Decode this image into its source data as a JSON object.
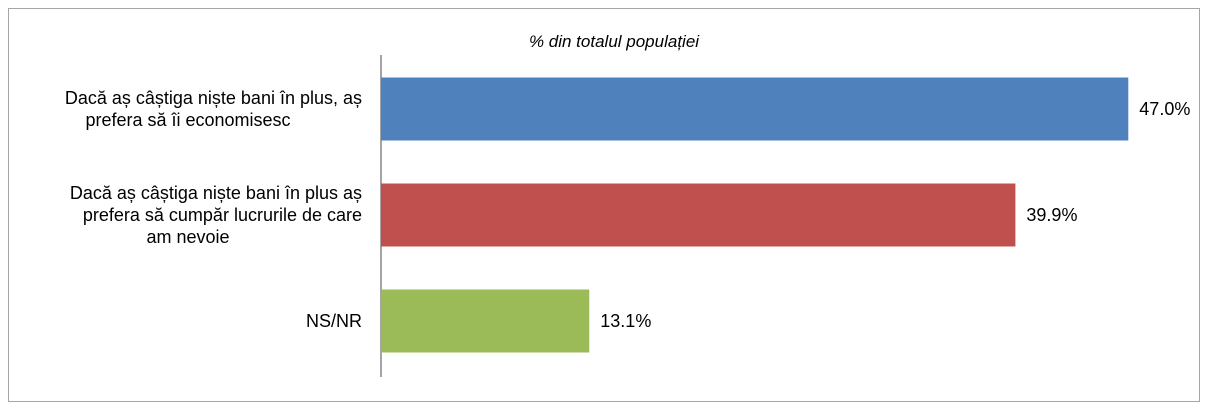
{
  "chart_data": {
    "type": "bar",
    "orientation": "horizontal",
    "subtitle": "% din totalul populației",
    "categories": [
      [
        "Dacă aș câștiga niște bani în plus, aș",
        "prefera să îi economisesc"
      ],
      [
        "Dacă aș câștiga niște bani în plus aș",
        "prefera să cumpăr lucrurile de care",
        "am nevoie"
      ],
      [
        "NS/NR"
      ]
    ],
    "values": [
      47.0,
      39.9,
      13.1
    ],
    "data_labels": [
      "47.0%",
      "39.9%",
      "13.1%"
    ],
    "colors": [
      "#4f81bd",
      "#c0504d",
      "#9bbb59"
    ],
    "xlim": [
      0,
      50
    ],
    "grid": false,
    "legend": "none"
  }
}
